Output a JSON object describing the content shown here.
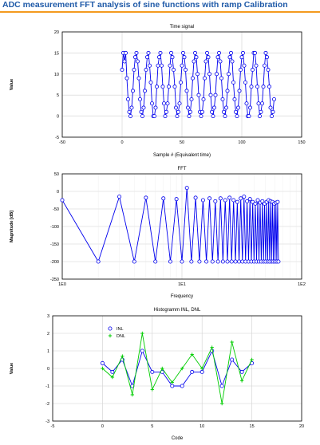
{
  "page": {
    "title": "ADC measurement FFT analysis of sine functions with ramp Calibration"
  },
  "colors": {
    "accent_rule": "#f39a1e",
    "title": "#1f5aa8",
    "series_blue": "#0000ee",
    "series_green": "#00cc00",
    "grid": "#d0d0d0",
    "plot_border": "#000000"
  },
  "chart_data": [
    {
      "type": "line",
      "title": "Time signal",
      "xlabel": "Sample # (Equivalent time)",
      "ylabel": "Value",
      "xlim": [
        -50,
        150
      ],
      "ylim": [
        -5,
        20
      ],
      "xticks": [
        -50,
        0,
        50,
        100,
        150
      ],
      "yticks": [
        -5,
        0,
        5,
        10,
        15,
        20
      ],
      "grid": true,
      "marker": "circle",
      "series": [
        {
          "x": [
            0,
            1,
            2,
            3,
            4,
            5,
            6,
            7,
            8,
            9,
            10,
            11,
            12,
            13,
            14,
            15,
            16,
            17,
            18,
            19,
            20,
            21,
            22,
            23,
            24,
            25,
            26,
            27,
            28,
            29,
            30,
            31,
            32,
            33,
            34,
            35,
            36,
            37,
            38,
            39,
            40,
            41,
            42,
            43,
            44,
            45,
            46,
            47,
            48,
            49,
            50,
            51,
            52,
            53,
            54,
            55,
            56,
            57,
            58,
            59,
            60,
            61,
            62,
            63,
            64,
            65,
            66,
            67,
            68,
            69,
            70,
            71,
            72,
            73,
            74,
            75,
            76,
            77,
            78,
            79,
            80,
            81,
            82,
            83,
            84,
            85,
            86,
            87,
            88,
            89,
            90,
            91,
            92,
            93,
            94,
            95,
            96,
            97,
            98,
            99,
            100,
            101,
            102,
            103,
            104,
            105,
            106,
            107,
            108,
            109,
            110,
            111,
            112,
            113,
            114,
            115,
            116,
            117,
            118,
            119,
            120,
            121,
            122,
            123,
            124,
            125,
            126,
            127
          ],
          "y": [
            11.0,
            15.0,
            13.0,
            15.0,
            9.0,
            4.0,
            1.0,
            0.0,
            2.0,
            6.0,
            11.0,
            14.0,
            15.0,
            13.0,
            9.0,
            4.0,
            1.0,
            0.0,
            2.0,
            6.0,
            11.0,
            14.0,
            15.0,
            12.0,
            8.0,
            3.0,
            0.0,
            0.0,
            2.0,
            7.0,
            12.0,
            14.0,
            15.0,
            12.0,
            7.0,
            3.0,
            0.0,
            1.0,
            3.0,
            7.0,
            12.0,
            15.0,
            14.0,
            11.0,
            7.0,
            2.0,
            0.0,
            1.0,
            3.0,
            8.0,
            12.0,
            15.0,
            14.0,
            11.0,
            6.0,
            2.0,
            0.0,
            1.0,
            4.0,
            9.0,
            13.0,
            15.0,
            14.0,
            10.0,
            5.0,
            1.0,
            0.0,
            1.0,
            4.0,
            9.0,
            13.0,
            15.0,
            14.0,
            10.0,
            5.0,
            1.0,
            0.0,
            2.0,
            5.0,
            10.0,
            14.0,
            15.0,
            13.0,
            9.0,
            4.0,
            1.0,
            0.0,
            2.0,
            6.0,
            10.0,
            14.0,
            15.0,
            13.0,
            8.0,
            4.0,
            1.0,
            0.0,
            2.0,
            6.0,
            11.0,
            14.0,
            15.0,
            12.0,
            8.0,
            3.0,
            0.0,
            0.0,
            2.0,
            7.0,
            11.0,
            15.0,
            15.0,
            12.0,
            7.0,
            3.0,
            0.0,
            1.0,
            3.0,
            7.0,
            12.0,
            15.0,
            14.0,
            11.0,
            7.0,
            2.0,
            0.0,
            1.0,
            4.0
          ]
        }
      ]
    },
    {
      "type": "line",
      "title": "FFT",
      "xlabel": "Frequency",
      "ylabel": "Magnitude [dB]",
      "xscale": "log",
      "xlim": [
        1,
        100
      ],
      "ylim": [
        -250,
        50
      ],
      "xticks": [
        "1E0",
        "1E1",
        "1E2"
      ],
      "yticks": [
        -250,
        -200,
        -150,
        -100,
        -50,
        0,
        50
      ],
      "grid": true,
      "marker": "circle",
      "series": [
        {
          "x": [
            1,
            2,
            3,
            4,
            5,
            6,
            7,
            8,
            9,
            10,
            11,
            12,
            13,
            14,
            15,
            16,
            17,
            18,
            19,
            20,
            21,
            22,
            23,
            24,
            25,
            26,
            27,
            28,
            29,
            30,
            31,
            32,
            33,
            34,
            35,
            36,
            37,
            38,
            39,
            40,
            41,
            42,
            43,
            44,
            45,
            46,
            47,
            48,
            49,
            50,
            51,
            52,
            53,
            54,
            55,
            56,
            57,
            58,
            59,
            60,
            61,
            62,
            63,
            64
          ],
          "y": [
            -25,
            -200,
            -15,
            -200,
            -18,
            -200,
            -20,
            -200,
            -22,
            -200,
            10,
            -200,
            -18,
            -200,
            -25,
            -200,
            -20,
            -200,
            -28,
            -200,
            -20,
            -200,
            -25,
            -200,
            -18,
            -200,
            -25,
            -200,
            -30,
            -200,
            -20,
            -200,
            -15,
            -200,
            -28,
            -200,
            -22,
            -200,
            -30,
            -200,
            -35,
            -200,
            -25,
            -200,
            -32,
            -200,
            -28,
            -200,
            -35,
            -200,
            -30,
            -200,
            -25,
            -200,
            -28,
            -200,
            -30,
            -200,
            -35,
            -200,
            -32,
            -200,
            -30,
            -200
          ]
        }
      ]
    },
    {
      "type": "line",
      "title": "Histogramm INL, DNL",
      "xlabel": "Code",
      "ylabel": "Value",
      "xlim": [
        -5,
        20
      ],
      "ylim": [
        -3,
        3
      ],
      "xticks": [
        -5,
        0,
        5,
        10,
        15,
        20
      ],
      "yticks": [
        -3,
        -2,
        -1,
        0,
        1,
        2,
        3
      ],
      "grid": true,
      "legend": "top-left",
      "series": [
        {
          "name": "INL",
          "marker": "circle",
          "x": [
            0,
            1,
            2,
            3,
            4,
            5,
            6,
            7,
            8,
            9,
            10,
            11,
            12,
            13,
            14,
            15
          ],
          "y": [
            0.3,
            -0.2,
            0.5,
            -1.0,
            1.0,
            -0.2,
            -0.2,
            -1.0,
            -1.0,
            -0.2,
            -0.2,
            1.0,
            -1.0,
            0.5,
            -0.2,
            0.3
          ]
        },
        {
          "name": "DNL",
          "marker": "plus",
          "x": [
            0,
            1,
            2,
            3,
            4,
            5,
            6,
            7,
            8,
            9,
            10,
            11,
            12,
            13,
            14,
            15
          ],
          "y": [
            0.0,
            -0.5,
            0.7,
            -1.5,
            2.0,
            -1.2,
            0.0,
            -0.8,
            0.0,
            0.8,
            0.0,
            1.2,
            -2.0,
            1.5,
            -0.7,
            0.5
          ]
        }
      ]
    }
  ]
}
